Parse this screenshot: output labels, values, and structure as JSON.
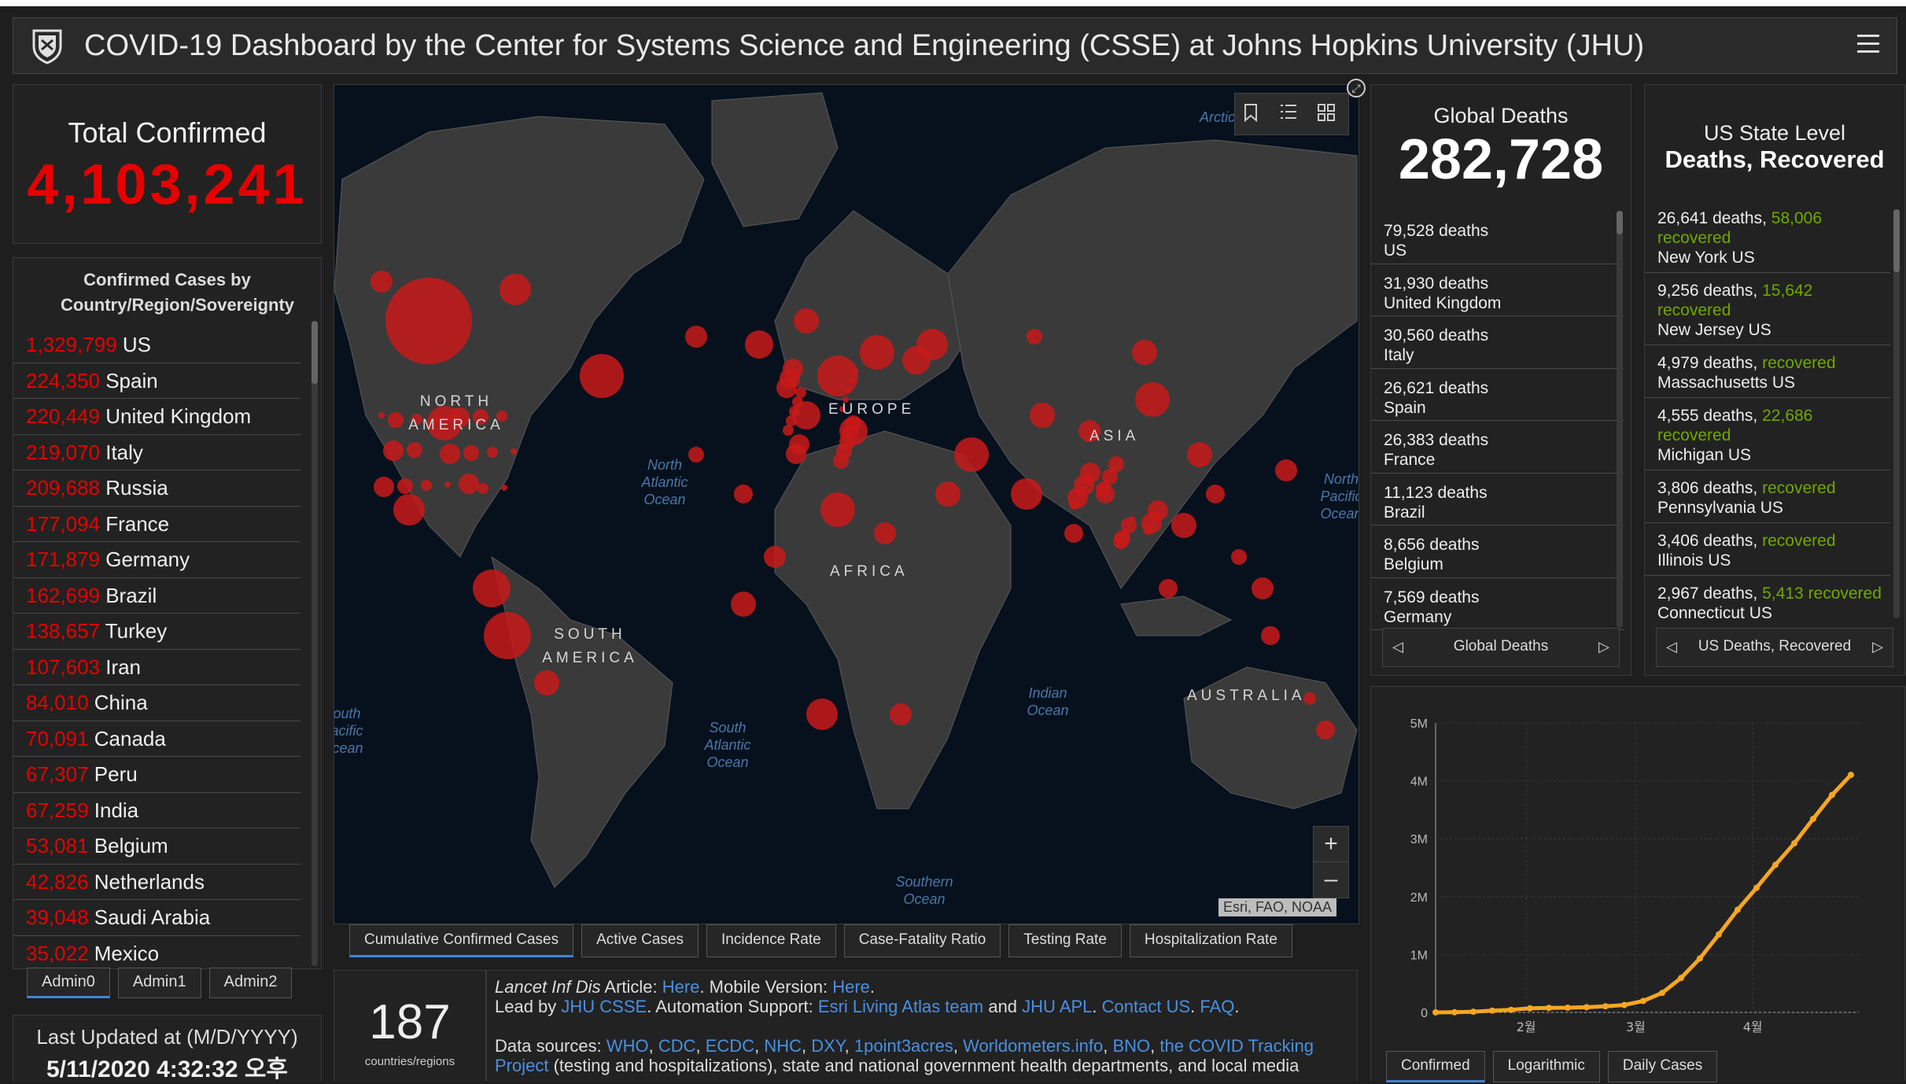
{
  "header": {
    "title": "COVID-19 Dashboard by the Center for Systems Science and Engineering (CSSE) at Johns Hopkins University (JHU)"
  },
  "total_confirmed": {
    "label": "Total Confirmed",
    "value": "4,103,241"
  },
  "country_list": {
    "header": "Confirmed Cases by Country/Region/Sovereignty",
    "rows": [
      {
        "value": "1,329,799",
        "name": "US"
      },
      {
        "value": "224,350",
        "name": "Spain"
      },
      {
        "value": "220,449",
        "name": "United Kingdom"
      },
      {
        "value": "219,070",
        "name": "Italy"
      },
      {
        "value": "209,688",
        "name": "Russia"
      },
      {
        "value": "177,094",
        "name": "France"
      },
      {
        "value": "171,879",
        "name": "Germany"
      },
      {
        "value": "162,699",
        "name": "Brazil"
      },
      {
        "value": "138,657",
        "name": "Turkey"
      },
      {
        "value": "107,603",
        "name": "Iran"
      },
      {
        "value": "84,010",
        "name": "China"
      },
      {
        "value": "70,091",
        "name": "Canada"
      },
      {
        "value": "67,307",
        "name": "Peru"
      },
      {
        "value": "67,259",
        "name": "India"
      },
      {
        "value": "53,081",
        "name": "Belgium"
      },
      {
        "value": "42,826",
        "name": "Netherlands"
      },
      {
        "value": "39,048",
        "name": "Saudi Arabia"
      },
      {
        "value": "35,022",
        "name": "Mexico"
      }
    ]
  },
  "admin_tabs": [
    "Admin0",
    "Admin1",
    "Admin2"
  ],
  "last_updated": {
    "label": "Last Updated at (M/D/YYYY)",
    "value": "5/11/2020 4:32:32 오후"
  },
  "map": {
    "ocean_labels": {
      "arctic": "Arctic Ocean",
      "north_atlantic": "North Atlantic Ocean",
      "north_pacific": "North Pacific Ocean",
      "south_pacific": "South Pacific Ocean",
      "south_atlantic": "South Atlantic Ocean",
      "indian": "Indian Ocean",
      "southern": "Southern Ocean"
    },
    "continent_labels": {
      "north_america": "NORTH AMERICA",
      "south_america": "SOUTH AMERICA",
      "europe": "EUROPE",
      "africa": "AFRICA",
      "asia": "ASIA",
      "australia": "AUSTRALIA"
    },
    "attribution": "Esri, FAO, NOAA",
    "zoom_in": "+",
    "zoom_out": "–"
  },
  "map_tabs": [
    "Cumulative Confirmed Cases",
    "Active Cases",
    "Incidence Rate",
    "Case-Fatality Ratio",
    "Testing Rate",
    "Hospitalization Rate"
  ],
  "countries_count": {
    "value": "187",
    "label": "countries/regions"
  },
  "info": {
    "article_prefix": "Lancet Inf Dis",
    "article_word": " Article: ",
    "here1": "Here",
    "mobile": ". Mobile Version: ",
    "here2": "Here",
    "period1": ".",
    "lead_by": "Lead by ",
    "jhu_csse": "JHU CSSE",
    "automation": ". Automation Support: ",
    "esri_team": "Esri Living Atlas team",
    "and": " and ",
    "jhu_apl": "JHU APL",
    "period2": ". ",
    "contact": "Contact US",
    "period3": ". ",
    "faq": "FAQ",
    "period4": ".",
    "data_sources": "Data sources: ",
    "sources": [
      "WHO",
      "CDC",
      "ECDC",
      "NHC",
      "DXY",
      "1point3acres",
      "Worldometers.info",
      "BNO"
    ],
    "tracking": "the COVID Tracking Project",
    "tail": " (testing and hospitalizations), state and national government health departments, and local media"
  },
  "global_deaths": {
    "label": "Global Deaths",
    "value": "282,728",
    "rows": [
      {
        "count": "79,528",
        "unit": "deaths",
        "place": "US"
      },
      {
        "count": "31,930",
        "unit": "deaths",
        "place": "United Kingdom"
      },
      {
        "count": "30,560",
        "unit": "deaths",
        "place": "Italy"
      },
      {
        "count": "26,621",
        "unit": "deaths",
        "place": "Spain"
      },
      {
        "count": "26,383",
        "unit": "deaths",
        "place": "France"
      },
      {
        "count": "11,123",
        "unit": "deaths",
        "place": "Brazil"
      },
      {
        "count": "8,656",
        "unit": "deaths",
        "place": "Belgium"
      },
      {
        "count": "7,569",
        "unit": "deaths",
        "place": "Germany"
      }
    ],
    "pager_label": "Global Deaths"
  },
  "us_state": {
    "label": "US State Level",
    "label2": "Deaths, Recovered",
    "rows": [
      {
        "deaths": "26,641 deaths,",
        "recovered_num": "58,006",
        "recovered": "recovered",
        "place": "New York US"
      },
      {
        "deaths": "9,256 deaths,",
        "recovered_num": "15,642",
        "recovered": "recovered",
        "place": "New Jersey US"
      },
      {
        "deaths": "4,979 deaths,",
        "recovered_num": "",
        "recovered": "recovered",
        "place": "Massachusetts US"
      },
      {
        "deaths": "4,555 deaths,",
        "recovered_num": "22,686",
        "recovered": "recovered",
        "place": "Michigan US"
      },
      {
        "deaths": "3,806 deaths,",
        "recovered_num": "",
        "recovered": "recovered",
        "place": "Pennsylvania US"
      },
      {
        "deaths": "3,406 deaths,",
        "recovered_num": "",
        "recovered": "recovered",
        "place": "Illinois US"
      },
      {
        "deaths": "2,967 deaths,",
        "recovered_num": "5,413",
        "recovered": "recovered",
        "place": "Connecticut US"
      }
    ],
    "pager_label": "US Deaths, Recovered"
  },
  "chart_tabs": [
    "Confirmed",
    "Logarithmic",
    "Daily Cases"
  ],
  "colors": {
    "confirmed_red": "#e60000",
    "recovered_green": "#70a800",
    "chart_orange": "#f5a623",
    "link_blue": "#4a90e2"
  },
  "chart_data": {
    "type": "line",
    "title": "",
    "xlabel": "",
    "ylabel": "",
    "x_ticks": [
      "2월",
      "3월",
      "4월"
    ],
    "y_ticks": [
      "0",
      "1M",
      "2M",
      "3M",
      "4M",
      "5M"
    ],
    "ylim": [
      0,
      5000000
    ],
    "x": [
      "2020-01-22",
      "2020-01-27",
      "2020-02-01",
      "2020-02-06",
      "2020-02-11",
      "2020-02-16",
      "2020-02-21",
      "2020-02-26",
      "2020-03-02",
      "2020-03-07",
      "2020-03-12",
      "2020-03-17",
      "2020-03-22",
      "2020-03-27",
      "2020-04-01",
      "2020-04-06",
      "2020-04-11",
      "2020-04-16",
      "2020-04-21",
      "2020-04-26",
      "2020-05-01",
      "2020-05-06",
      "2020-05-11"
    ],
    "values": [
      555,
      2900,
      12000,
      31000,
      45000,
      71000,
      78000,
      81000,
      90000,
      106000,
      128000,
      198000,
      337000,
      595000,
      933000,
      1346000,
      1773000,
      2152000,
      2549000,
      2920000,
      3343000,
      3757000,
      4103241
    ],
    "grid": true
  }
}
